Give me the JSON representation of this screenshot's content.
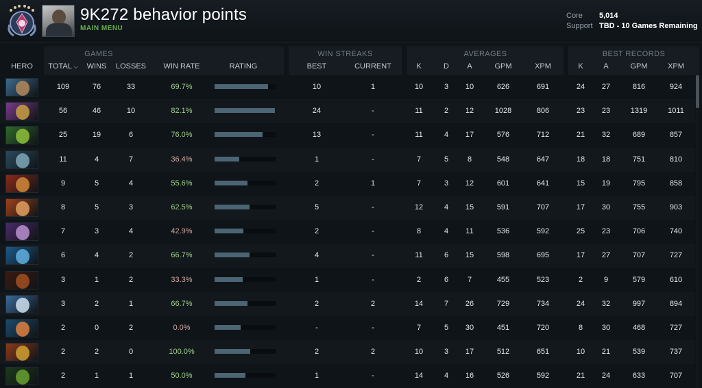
{
  "header": {
    "title": "9K272 behavior points",
    "main_menu": "MAIN MENU",
    "roles": [
      {
        "label": "Core",
        "value": "5,014"
      },
      {
        "label": "Support",
        "value": "TBD - 10 Games Remaining"
      }
    ],
    "rank_icon": "rank-medal-icon",
    "avatar_icon": "player-avatar"
  },
  "groups": {
    "games": "GAMES",
    "win_streaks": "WIN STREAKS",
    "averages": "AVERAGES",
    "best_records": "BEST RECORDS"
  },
  "columns": {
    "hero": "HERO",
    "total": "TOTAL",
    "wins": "WINS",
    "losses": "LOSSES",
    "win_rate": "WIN RATE",
    "rating": "RATING",
    "best": "BEST",
    "current": "CURRENT",
    "avg_k": "K",
    "avg_d": "D",
    "avg_a": "A",
    "avg_gpm": "GPM",
    "avg_xpm": "XPM",
    "best_k": "K",
    "best_a": "A",
    "best_gpm": "GPM",
    "best_xpm": "XPM"
  },
  "sort_indicator": "chevron-down-icon",
  "rows": [
    {
      "total": "109",
      "wins": "76",
      "losses": "33",
      "win_rate": "69.7%",
      "rating": 0.88,
      "best": "10",
      "current": "1",
      "k": "10",
      "d": "3",
      "a": "10",
      "gpm": "626",
      "xpm": "691",
      "bk": "24",
      "ba": "27",
      "bgpm": "816",
      "bxpm": "924",
      "colors": [
        "#3b6b8c",
        "#b48a5a"
      ]
    },
    {
      "total": "56",
      "wins": "46",
      "losses": "10",
      "win_rate": "82.1%",
      "rating": 0.99,
      "best": "24",
      "current": "-",
      "k": "11",
      "d": "2",
      "a": "12",
      "gpm": "1028",
      "xpm": "806",
      "bk": "23",
      "ba": "23",
      "bgpm": "1319",
      "bxpm": "1011",
      "colors": [
        "#7a3a8a",
        "#c7a040"
      ]
    },
    {
      "total": "25",
      "wins": "19",
      "losses": "6",
      "win_rate": "76.0%",
      "rating": 0.79,
      "best": "13",
      "current": "-",
      "k": "11",
      "d": "4",
      "a": "17",
      "gpm": "576",
      "xpm": "712",
      "bk": "21",
      "ba": "32",
      "bgpm": "689",
      "bxpm": "857",
      "colors": [
        "#2f6a2a",
        "#8fbf3a"
      ]
    },
    {
      "total": "11",
      "wins": "4",
      "losses": "7",
      "win_rate": "36.4%",
      "rating": 0.41,
      "best": "1",
      "current": "-",
      "k": "7",
      "d": "5",
      "a": "8",
      "gpm": "548",
      "xpm": "647",
      "bk": "18",
      "ba": "18",
      "bgpm": "751",
      "bxpm": "810",
      "colors": [
        "#2a4a5c",
        "#7fa8b8"
      ]
    },
    {
      "total": "9",
      "wins": "5",
      "losses": "4",
      "win_rate": "55.6%",
      "rating": 0.54,
      "best": "2",
      "current": "1",
      "k": "7",
      "d": "3",
      "a": "12",
      "gpm": "601",
      "xpm": "641",
      "bk": "15",
      "ba": "19",
      "bgpm": "795",
      "bxpm": "858",
      "colors": [
        "#8a2a1a",
        "#d08a3a"
      ]
    },
    {
      "total": "8",
      "wins": "5",
      "losses": "3",
      "win_rate": "62.5%",
      "rating": 0.57,
      "best": "5",
      "current": "-",
      "k": "12",
      "d": "4",
      "a": "15",
      "gpm": "591",
      "xpm": "707",
      "bk": "17",
      "ba": "30",
      "bgpm": "755",
      "bxpm": "903",
      "colors": [
        "#a0401a",
        "#e0a060"
      ]
    },
    {
      "total": "7",
      "wins": "3",
      "losses": "4",
      "win_rate": "42.9%",
      "rating": 0.47,
      "best": "2",
      "current": "-",
      "k": "8",
      "d": "4",
      "a": "11",
      "gpm": "536",
      "xpm": "592",
      "bk": "25",
      "ba": "23",
      "bgpm": "706",
      "bxpm": "740",
      "colors": [
        "#4a2a6a",
        "#b890d0"
      ]
    },
    {
      "total": "6",
      "wins": "4",
      "losses": "2",
      "win_rate": "66.7%",
      "rating": 0.57,
      "best": "4",
      "current": "-",
      "k": "11",
      "d": "6",
      "a": "15",
      "gpm": "598",
      "xpm": "695",
      "bk": "17",
      "ba": "27",
      "bgpm": "707",
      "bxpm": "727",
      "colors": [
        "#1a5a8a",
        "#60b0e0"
      ]
    },
    {
      "total": "3",
      "wins": "1",
      "losses": "2",
      "win_rate": "33.3%",
      "rating": 0.46,
      "best": "1",
      "current": "-",
      "k": "2",
      "d": "6",
      "a": "7",
      "gpm": "455",
      "xpm": "523",
      "bk": "2",
      "ba": "9",
      "bgpm": "579",
      "bxpm": "610",
      "colors": [
        "#3a1a10",
        "#a05020"
      ]
    },
    {
      "total": "3",
      "wins": "2",
      "losses": "1",
      "win_rate": "66.7%",
      "rating": 0.54,
      "best": "2",
      "current": "2",
      "k": "14",
      "d": "7",
      "a": "26",
      "gpm": "729",
      "xpm": "734",
      "bk": "24",
      "ba": "32",
      "bgpm": "997",
      "bxpm": "894",
      "colors": [
        "#3a6a9a",
        "#d0e0f0"
      ]
    },
    {
      "total": "2",
      "wins": "0",
      "losses": "2",
      "win_rate": "0.0%",
      "rating": 0.43,
      "best": "-",
      "current": "-",
      "k": "7",
      "d": "5",
      "a": "30",
      "gpm": "451",
      "xpm": "720",
      "bk": "8",
      "ba": "30",
      "bgpm": "468",
      "bxpm": "727",
      "colors": [
        "#1a4a6a",
        "#e08040"
      ]
    },
    {
      "total": "2",
      "wins": "2",
      "losses": "0",
      "win_rate": "100.0%",
      "rating": 0.58,
      "best": "2",
      "current": "2",
      "k": "10",
      "d": "3",
      "a": "17",
      "gpm": "512",
      "xpm": "651",
      "bk": "10",
      "ba": "21",
      "bgpm": "539",
      "bxpm": "737",
      "colors": [
        "#8a3a1a",
        "#d0a030"
      ]
    },
    {
      "total": "2",
      "wins": "1",
      "losses": "1",
      "win_rate": "50.0%",
      "rating": 0.5,
      "best": "1",
      "current": "-",
      "k": "14",
      "d": "4",
      "a": "16",
      "gpm": "526",
      "xpm": "592",
      "bk": "21",
      "ba": "24",
      "bgpm": "633",
      "bxpm": "707",
      "colors": [
        "#1a3a1a",
        "#6aa030"
      ]
    }
  ]
}
